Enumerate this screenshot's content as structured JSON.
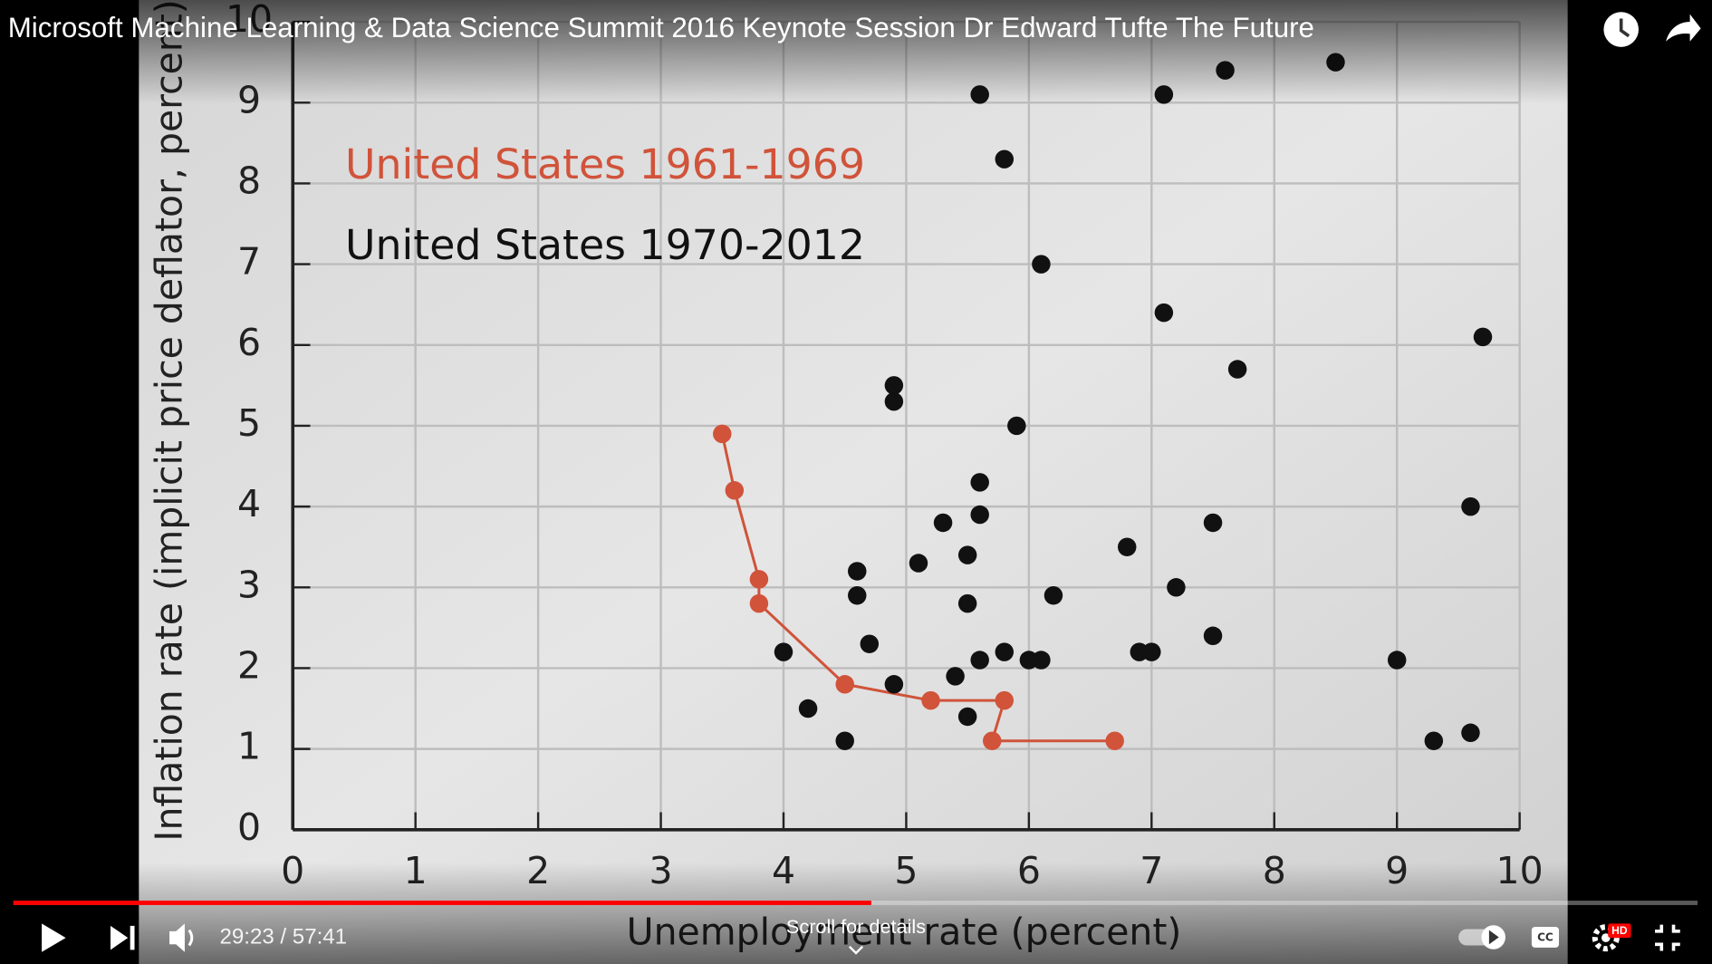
{
  "player": {
    "title": "Microsoft Machine Learning & Data Science Summit 2016 Keynote Session Dr Edward Tufte The Future",
    "time": "29:23 / 57:41",
    "current": "29:23",
    "duration": "57:41",
    "hint": "Scroll for details",
    "quality_badge": "HD"
  },
  "chart_data": {
    "type": "scatter",
    "xlabel": "Unemployment rate (percent)",
    "ylabel": "Inflation rate (implicit price deflator, percent)",
    "xlim": [
      0,
      10
    ],
    "xticks": [
      0,
      1,
      2,
      3,
      4,
      5,
      6,
      7,
      8,
      9,
      10
    ],
    "ylim": [
      0,
      10
    ],
    "yticks": [
      0,
      1,
      2,
      3,
      4,
      5,
      6,
      7,
      8,
      9,
      10
    ],
    "grid": true,
    "series": [
      {
        "name": "United States 1961-1969",
        "color": "#d0533a",
        "connected": true,
        "x": [
          6.7,
          5.7,
          5.8,
          5.2,
          4.5,
          3.8,
          3.8,
          3.6,
          3.5
        ],
        "values": [
          1.1,
          1.1,
          1.6,
          1.6,
          1.8,
          2.8,
          3.1,
          4.2,
          4.9
        ]
      },
      {
        "name": "United States 1970-2012",
        "color": "#111111",
        "connected": false,
        "x": [
          5.6,
          5.8,
          7.1,
          7.6,
          8.5,
          6.1,
          7.1,
          9.7,
          7.7,
          4.9,
          4.9,
          5.9,
          5.6,
          5.6,
          5.3,
          7.5,
          9.6,
          6.8,
          5.1,
          5.5,
          4.6,
          4.6,
          6.2,
          7.2,
          5.5,
          4.7,
          4.0,
          5.8,
          6.9,
          7.0,
          7.5,
          5.6,
          6.0,
          6.1,
          9.0,
          5.4,
          4.9,
          4.2,
          5.5,
          4.5,
          9.3,
          9.6
        ],
        "values": [
          9.1,
          8.3,
          9.1,
          9.4,
          9.5,
          7.0,
          6.4,
          6.1,
          5.7,
          5.5,
          5.3,
          5.0,
          4.3,
          3.9,
          3.8,
          3.8,
          4.0,
          3.5,
          3.3,
          3.4,
          3.2,
          2.9,
          2.9,
          3.0,
          2.8,
          2.3,
          2.2,
          2.2,
          2.2,
          2.2,
          2.4,
          2.1,
          2.1,
          2.1,
          2.1,
          1.9,
          1.8,
          1.5,
          1.4,
          1.1,
          1.1,
          1.2
        ]
      }
    ]
  }
}
